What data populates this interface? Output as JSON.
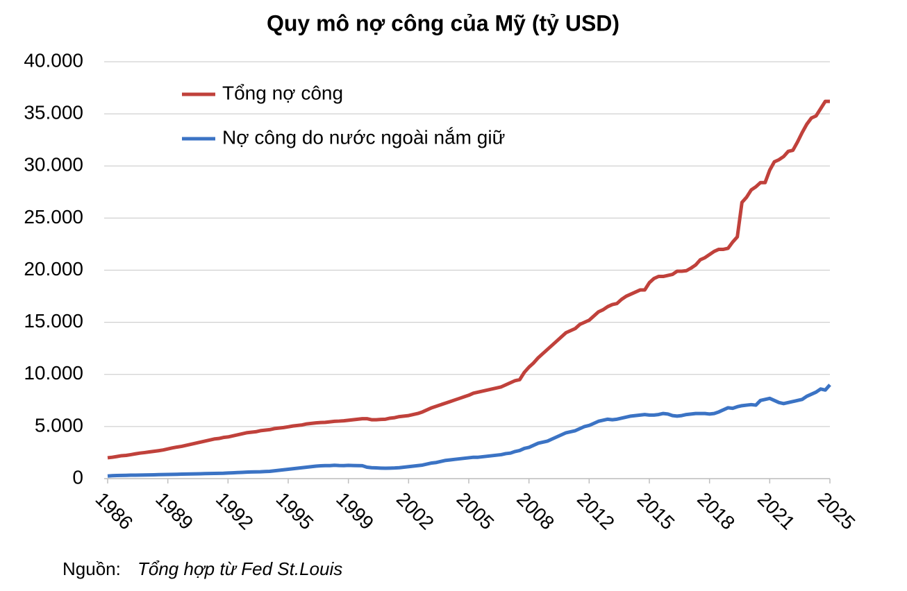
{
  "chart_data": {
    "type": "line",
    "title": "Quy mô nợ công của Mỹ (tỷ USD)",
    "source_label": "Nguồn:",
    "source": "Tổng hợp từ Fed St.Louis",
    "categories": [
      "1986",
      null,
      null,
      null,
      null,
      null,
      null,
      null,
      null,
      null,
      null,
      null,
      null,
      "1989",
      null,
      null,
      null,
      null,
      null,
      null,
      null,
      null,
      null,
      null,
      null,
      null,
      "1992",
      null,
      null,
      null,
      null,
      null,
      null,
      null,
      null,
      null,
      null,
      null,
      null,
      "1995",
      null,
      null,
      null,
      null,
      null,
      null,
      null,
      null,
      null,
      null,
      null,
      null,
      "1999",
      null,
      null,
      null,
      null,
      null,
      null,
      null,
      null,
      null,
      null,
      null,
      null,
      "2002",
      null,
      null,
      null,
      null,
      null,
      null,
      null,
      null,
      null,
      null,
      null,
      null,
      "2005",
      null,
      null,
      null,
      null,
      null,
      null,
      null,
      null,
      null,
      null,
      null,
      null,
      "2008",
      null,
      null,
      null,
      null,
      null,
      null,
      null,
      null,
      null,
      null,
      null,
      null,
      "2012",
      null,
      null,
      null,
      null,
      null,
      null,
      null,
      null,
      null,
      null,
      null,
      null,
      "2015",
      null,
      null,
      null,
      null,
      null,
      null,
      null,
      null,
      null,
      null,
      null,
      null,
      "2018",
      null,
      null,
      null,
      null,
      null,
      null,
      null,
      null,
      null,
      null,
      null,
      null,
      "2021",
      null,
      null,
      null,
      null,
      null,
      null,
      null,
      null,
      null,
      null,
      null,
      null,
      "2025"
    ],
    "series": [
      {
        "name": "Tổng nợ công",
        "color": "#c0413b",
        "values": [
          2000,
          2050,
          2120,
          2200,
          2230,
          2300,
          2380,
          2450,
          2500,
          2560,
          2620,
          2680,
          2750,
          2850,
          2950,
          3030,
          3100,
          3200,
          3300,
          3400,
          3500,
          3600,
          3700,
          3800,
          3850,
          3950,
          4000,
          4100,
          4200,
          4300,
          4400,
          4450,
          4500,
          4600,
          4650,
          4700,
          4800,
          4850,
          4900,
          4970,
          5050,
          5100,
          5150,
          5250,
          5300,
          5350,
          5380,
          5400,
          5450,
          5500,
          5520,
          5550,
          5600,
          5650,
          5700,
          5750,
          5750,
          5650,
          5650,
          5680,
          5700,
          5800,
          5850,
          5950,
          6000,
          6050,
          6150,
          6250,
          6400,
          6600,
          6800,
          6950,
          7100,
          7250,
          7400,
          7550,
          7700,
          7850,
          8000,
          8200,
          8300,
          8400,
          8500,
          8600,
          8700,
          8800,
          9000,
          9200,
          9400,
          9500,
          10200,
          10700,
          11100,
          11600,
          12000,
          12400,
          12800,
          13200,
          13600,
          14000,
          14200,
          14400,
          14800,
          15000,
          15200,
          15600,
          16000,
          16200,
          16500,
          16700,
          16800,
          17200,
          17500,
          17700,
          17900,
          18100,
          18100,
          18800,
          19200,
          19400,
          19400,
          19500,
          19600,
          19900,
          19900,
          19950,
          20200,
          20500,
          21000,
          21200,
          21500,
          21800,
          22000,
          22000,
          22100,
          22700,
          23200,
          26500,
          27000,
          27700,
          28000,
          28400,
          28400,
          29600,
          30400,
          30600,
          30900,
          31400,
          31500,
          32300,
          33200,
          34000,
          34600,
          34800,
          35500,
          36200,
          36200
        ]
      },
      {
        "name": "Nợ công do nước ngoài nắm giữ",
        "color": "#3b73c4",
        "values": [
          250,
          280,
          300,
          310,
          320,
          330,
          330,
          340,
          350,
          360,
          370,
          380,
          390,
          400,
          410,
          420,
          430,
          440,
          450,
          460,
          470,
          480,
          490,
          500,
          510,
          520,
          540,
          560,
          580,
          600,
          620,
          640,
          650,
          660,
          680,
          700,
          750,
          800,
          850,
          900,
          950,
          1000,
          1050,
          1100,
          1150,
          1200,
          1230,
          1250,
          1250,
          1280,
          1260,
          1250,
          1270,
          1260,
          1250,
          1240,
          1100,
          1050,
          1030,
          1010,
          1000,
          1010,
          1020,
          1050,
          1100,
          1150,
          1200,
          1250,
          1300,
          1400,
          1500,
          1550,
          1650,
          1750,
          1800,
          1850,
          1900,
          1950,
          2000,
          2050,
          2050,
          2100,
          2150,
          2200,
          2250,
          2300,
          2400,
          2450,
          2600,
          2700,
          2900,
          3000,
          3200,
          3400,
          3500,
          3600,
          3800,
          4000,
          4200,
          4400,
          4500,
          4600,
          4800,
          5000,
          5100,
          5300,
          5500,
          5600,
          5700,
          5650,
          5700,
          5800,
          5900,
          6000,
          6050,
          6100,
          6150,
          6100,
          6100,
          6150,
          6250,
          6200,
          6050,
          6000,
          6050,
          6150,
          6200,
          6250,
          6250,
          6250,
          6200,
          6250,
          6400,
          6600,
          6800,
          6750,
          6900,
          7000,
          7050,
          7100,
          7050,
          7500,
          7600,
          7700,
          7500,
          7300,
          7200,
          7300,
          7400,
          7500,
          7600,
          7900,
          8100,
          8300,
          8600,
          8500,
          9000
        ]
      }
    ],
    "ylim": [
      0,
      40000
    ],
    "yticks": [
      0,
      {
        "value": 5000,
        "label": "5.000"
      },
      {
        "value": 10000,
        "label": "10.000"
      },
      {
        "value": 15000,
        "label": "15.000"
      },
      {
        "value": 20000,
        "label": "20.000"
      },
      {
        "value": 25000,
        "label": "25.000"
      },
      {
        "value": 30000,
        "label": "30.000"
      },
      {
        "value": 35000,
        "label": "35.000"
      },
      {
        "value": 40000,
        "label": "40.000"
      }
    ],
    "grid": true,
    "legend": "upper-left"
  }
}
